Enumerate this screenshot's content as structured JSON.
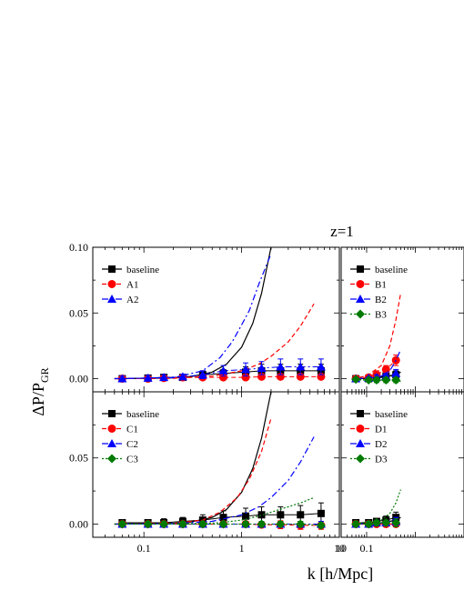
{
  "figure": {
    "title": "z=1",
    "xlabel": "k [h/Mpc]",
    "ylabel_main": "ΔP/P",
    "ylabel_sub": "GR"
  },
  "chart_data": [
    {
      "type": "line",
      "panel": "A",
      "x_scale": "log",
      "xlim": [
        0.03,
        10
      ],
      "ylim": [
        -0.01,
        0.1
      ],
      "y_ticks": [
        "0.00",
        "0.05",
        "0.10"
      ],
      "x_ticks": [
        "0.1",
        "1",
        "10"
      ],
      "legend_position": "top-left",
      "series": [
        {
          "name": "baseline",
          "color": "#000000",
          "dash": "",
          "marker": "square",
          "curve_x": [
            0.05,
            0.1,
            0.2,
            0.3,
            0.5,
            0.7,
            1.0,
            1.3,
            1.6,
            2.0
          ],
          "curve_y": [
            0.0,
            0.0002,
            0.0006,
            0.0015,
            0.005,
            0.011,
            0.024,
            0.042,
            0.065,
            0.1
          ],
          "points_x": [
            0.06,
            0.11,
            0.16,
            0.25,
            0.4,
            0.65,
            1.1,
            1.6,
            2.5,
            4.0,
            6.5
          ],
          "points_y": [
            0.0,
            0.0005,
            0.001,
            0.001,
            0.003,
            0.004,
            0.005,
            0.006,
            0.006,
            0.006,
            0.006
          ],
          "err": [
            0.002,
            0.002,
            0.002,
            0.002,
            0.003,
            0.003,
            0.004,
            0.005,
            0.005,
            0.005,
            0.005
          ]
        },
        {
          "name": "A1",
          "color": "#ff0000",
          "dash": "5,3",
          "marker": "circle",
          "curve_x": [
            0.05,
            0.2,
            0.5,
            1.0,
            1.5,
            2.0,
            3.0,
            4.0,
            5.5
          ],
          "curve_y": [
            0.0,
            0.0003,
            0.002,
            0.006,
            0.011,
            0.017,
            0.028,
            0.04,
            0.057
          ],
          "points_x": [
            0.06,
            0.11,
            0.16,
            0.25,
            0.4,
            0.65,
            1.1,
            1.6,
            2.5,
            4.0,
            6.5
          ],
          "points_y": [
            0.0,
            0.0,
            0.0005,
            0.001,
            0.001,
            0.001,
            0.001,
            0.0015,
            0.0015,
            0.0015,
            0.0015
          ],
          "err": [
            0.001,
            0.001,
            0.001,
            0.001,
            0.001,
            0.001,
            0.001,
            0.001,
            0.001,
            0.001,
            0.001
          ]
        },
        {
          "name": "A2",
          "color": "#0000ff",
          "dash": "7,3,2,3",
          "marker": "triangle",
          "curve_x": [
            0.05,
            0.2,
            0.4,
            0.6,
            0.8,
            1.0,
            1.2,
            1.5,
            2.0
          ],
          "curve_y": [
            0.0,
            0.0008,
            0.006,
            0.016,
            0.028,
            0.041,
            0.052,
            0.072,
            0.095
          ],
          "points_x": [
            0.06,
            0.11,
            0.16,
            0.25,
            0.4,
            0.65,
            1.1,
            1.6,
            2.5,
            4.0,
            6.5
          ],
          "points_y": [
            0.0,
            0.0005,
            0.001,
            0.0015,
            0.003,
            0.006,
            0.007,
            0.008,
            0.009,
            0.009,
            0.009
          ],
          "err": [
            0.002,
            0.002,
            0.002,
            0.002,
            0.003,
            0.004,
            0.005,
            0.005,
            0.006,
            0.006,
            0.006
          ]
        }
      ]
    },
    {
      "type": "line",
      "panel": "B",
      "x_scale": "log",
      "xlim": [
        0.03,
        10
      ],
      "ylim": [
        -0.01,
        0.1
      ],
      "x_ticks": [
        "10",
        "0.1"
      ],
      "legend_position": "top-left",
      "series": [
        {
          "name": "baseline",
          "color": "#000000",
          "dash": "",
          "marker": "square",
          "curve_x": [
            0.05,
            0.1,
            0.2,
            0.3,
            0.4,
            0.5
          ],
          "curve_y": [
            0.0,
            0.0003,
            0.001,
            0.002,
            0.003,
            0.005
          ],
          "points_x": [
            0.06,
            0.11,
            0.16,
            0.25,
            0.4
          ],
          "points_y": [
            0.0,
            0.0,
            0.001,
            0.002,
            0.003
          ],
          "err": [
            0.001,
            0.001,
            0.002,
            0.002,
            0.003
          ]
        },
        {
          "name": "B1",
          "color": "#ff0000",
          "dash": "5,3",
          "marker": "circle",
          "curve_x": [
            0.05,
            0.1,
            0.2,
            0.3,
            0.4,
            0.5
          ],
          "curve_y": [
            0.0,
            0.002,
            0.01,
            0.025,
            0.045,
            0.065
          ],
          "points_x": [
            0.06,
            0.11,
            0.16,
            0.25,
            0.4
          ],
          "points_y": [
            0.0,
            0.001,
            0.003,
            0.007,
            0.014
          ],
          "err": [
            0.001,
            0.002,
            0.003,
            0.003,
            0.004
          ]
        },
        {
          "name": "B2",
          "color": "#0000ff",
          "dash": "7,3,2,3",
          "marker": "triangle",
          "curve_x": [
            0.05,
            0.1,
            0.2,
            0.3,
            0.4,
            0.5
          ],
          "curve_y": [
            0.0,
            0.0005,
            0.002,
            0.006,
            0.014,
            0.022
          ],
          "points_x": [
            0.06,
            0.11,
            0.16,
            0.25,
            0.4
          ],
          "points_y": [
            0.0,
            0.0005,
            0.001,
            0.002,
            0.004
          ],
          "err": [
            0.001,
            0.001,
            0.002,
            0.002,
            0.003
          ]
        },
        {
          "name": "B3",
          "color": "#007a00",
          "dash": "2,2",
          "marker": "diamond",
          "curve_x": [
            0.05,
            0.2,
            0.4,
            0.5
          ],
          "curve_y": [
            -0.001,
            -0.001,
            -0.002,
            -0.002
          ],
          "points_x": [
            0.06,
            0.11,
            0.16,
            0.25,
            0.4
          ],
          "points_y": [
            -0.0005,
            -0.001,
            -0.001,
            -0.001,
            -0.001
          ],
          "err": [
            0.001,
            0.001,
            0.002,
            0.002,
            0.002
          ]
        }
      ]
    },
    {
      "type": "line",
      "panel": "C",
      "x_scale": "log",
      "xlim": [
        0.03,
        10
      ],
      "ylim": [
        -0.01,
        0.1
      ],
      "y_ticks": [
        "0.00",
        "0.05"
      ],
      "x_ticks": [
        "0.1",
        "1",
        "10"
      ],
      "legend_position": "top-left",
      "series": [
        {
          "name": "baseline",
          "color": "#000000",
          "dash": "",
          "marker": "square",
          "curve_x": [
            0.05,
            0.1,
            0.2,
            0.3,
            0.5,
            0.7,
            1.0,
            1.3,
            1.6,
            2.0
          ],
          "curve_y": [
            0.0,
            0.0002,
            0.0006,
            0.0015,
            0.005,
            0.011,
            0.024,
            0.042,
            0.065,
            0.1
          ],
          "points_x": [
            0.06,
            0.11,
            0.16,
            0.25,
            0.4,
            0.65,
            1.1,
            1.6,
            2.5,
            4.0,
            6.5
          ],
          "points_y": [
            0.001,
            0.001,
            0.001,
            0.002,
            0.003,
            0.005,
            0.006,
            0.007,
            0.007,
            0.007,
            0.008
          ],
          "err": [
            0.002,
            0.002,
            0.003,
            0.003,
            0.004,
            0.005,
            0.006,
            0.006,
            0.006,
            0.007,
            0.008
          ]
        },
        {
          "name": "C1",
          "color": "#ff0000",
          "dash": "5,3",
          "marker": "circle",
          "curve_x": [
            0.05,
            0.2,
            0.4,
            0.6,
            0.9,
            1.2,
            1.6,
            2.0
          ],
          "curve_y": [
            0.0,
            0.0005,
            0.003,
            0.009,
            0.02,
            0.034,
            0.055,
            0.08
          ],
          "points_x": [
            0.06,
            0.11,
            0.16,
            0.25,
            0.4,
            0.65,
            1.1,
            1.6,
            2.5,
            4.0,
            6.5
          ],
          "points_y": [
            0.0,
            0.0,
            0.0,
            0.0,
            0.0,
            0.0,
            0.0,
            -0.0005,
            -0.0005,
            -0.001,
            -0.001
          ],
          "err": [
            0.002,
            0.002,
            0.002,
            0.002,
            0.002,
            0.002,
            0.002,
            0.002,
            0.003,
            0.003,
            0.003
          ]
        },
        {
          "name": "C2",
          "color": "#0000ff",
          "dash": "7,3,2,3",
          "marker": "triangle",
          "curve_x": [
            0.05,
            0.2,
            0.5,
            1.0,
            1.5,
            2.0,
            3.0,
            4.0,
            5.5
          ],
          "curve_y": [
            0.0,
            0.0003,
            0.002,
            0.007,
            0.013,
            0.02,
            0.033,
            0.047,
            0.066
          ],
          "points_x": [
            0.06,
            0.11,
            0.16,
            0.25,
            0.4,
            0.65,
            1.1,
            1.6,
            2.5,
            4.0,
            6.5
          ],
          "points_y": [
            0.0,
            0.0,
            0.0,
            0.0,
            0.0,
            0.0,
            0.0,
            0.0,
            0.0,
            0.0,
            0.0
          ],
          "err": [
            0.002,
            0.002,
            0.002,
            0.002,
            0.002,
            0.002,
            0.002,
            0.002,
            0.002,
            0.002,
            0.002
          ]
        },
        {
          "name": "C3",
          "color": "#007a00",
          "dash": "2,2",
          "marker": "diamond",
          "curve_x": [
            0.05,
            0.3,
            0.6,
            1.0,
            1.5,
            2.0,
            3.0,
            4.0,
            5.5
          ],
          "curve_y": [
            0.0,
            0.0003,
            0.001,
            0.003,
            0.006,
            0.009,
            0.013,
            0.016,
            0.02
          ],
          "points_x": [
            0.06,
            0.11,
            0.16,
            0.25,
            0.4,
            0.65,
            1.1,
            1.6,
            2.5,
            4.0,
            6.5
          ],
          "points_y": [
            0.0,
            0.0,
            0.0,
            0.0,
            0.0,
            0.0,
            0.0,
            0.0,
            0.0,
            0.0,
            -0.001
          ],
          "err": [
            0.002,
            0.002,
            0.002,
            0.002,
            0.002,
            0.002,
            0.002,
            0.002,
            0.002,
            0.002,
            0.002
          ]
        }
      ]
    },
    {
      "type": "line",
      "panel": "D",
      "x_scale": "log",
      "xlim": [
        0.03,
        10
      ],
      "ylim": [
        -0.01,
        0.1
      ],
      "x_ticks": [
        "10",
        "0.1"
      ],
      "legend_position": "top-left",
      "series": [
        {
          "name": "baseline",
          "color": "#000000",
          "dash": "",
          "marker": "square",
          "curve_x": [
            0.05,
            0.1,
            0.2,
            0.3,
            0.4,
            0.5
          ],
          "curve_y": [
            0.0,
            0.0003,
            0.001,
            0.002,
            0.003,
            0.005
          ],
          "points_x": [
            0.06,
            0.11,
            0.16,
            0.25,
            0.4
          ],
          "points_y": [
            0.001,
            0.001,
            0.002,
            0.003,
            0.005
          ],
          "err": [
            0.002,
            0.002,
            0.002,
            0.003,
            0.004
          ]
        },
        {
          "name": "D1",
          "color": "#ff0000",
          "dash": "5,3",
          "marker": "circle",
          "curve_x": [
            0.05,
            0.2,
            0.4,
            0.5
          ],
          "curve_y": [
            0.0,
            0.0,
            0.0,
            0.0
          ],
          "points_x": [
            0.06,
            0.11,
            0.16,
            0.25,
            0.4
          ],
          "points_y": [
            0.0,
            0.0,
            0.0,
            0.0,
            0.0
          ],
          "err": [
            0.002,
            0.002,
            0.002,
            0.002,
            0.002
          ]
        },
        {
          "name": "D2",
          "color": "#0000ff",
          "dash": "7,3,2,3",
          "marker": "triangle",
          "curve_x": [
            0.05,
            0.2,
            0.3,
            0.4,
            0.5
          ],
          "curve_y": [
            0.0,
            0.0008,
            0.002,
            0.004,
            0.006
          ],
          "points_x": [
            0.06,
            0.11,
            0.16,
            0.25,
            0.4
          ],
          "points_y": [
            0.0,
            0.0,
            0.001,
            0.001,
            0.002
          ],
          "err": [
            0.002,
            0.002,
            0.002,
            0.002,
            0.003
          ]
        },
        {
          "name": "D3",
          "color": "#007a00",
          "dash": "2,2",
          "marker": "diamond",
          "curve_x": [
            0.05,
            0.2,
            0.3,
            0.4,
            0.5
          ],
          "curve_y": [
            0.0,
            0.003,
            0.008,
            0.016,
            0.026
          ],
          "points_x": [
            0.06,
            0.11,
            0.16,
            0.25,
            0.4
          ],
          "points_y": [
            0.0,
            0.0,
            0.001,
            0.001,
            0.001
          ],
          "err": [
            0.002,
            0.002,
            0.002,
            0.002,
            0.003
          ]
        }
      ]
    }
  ]
}
